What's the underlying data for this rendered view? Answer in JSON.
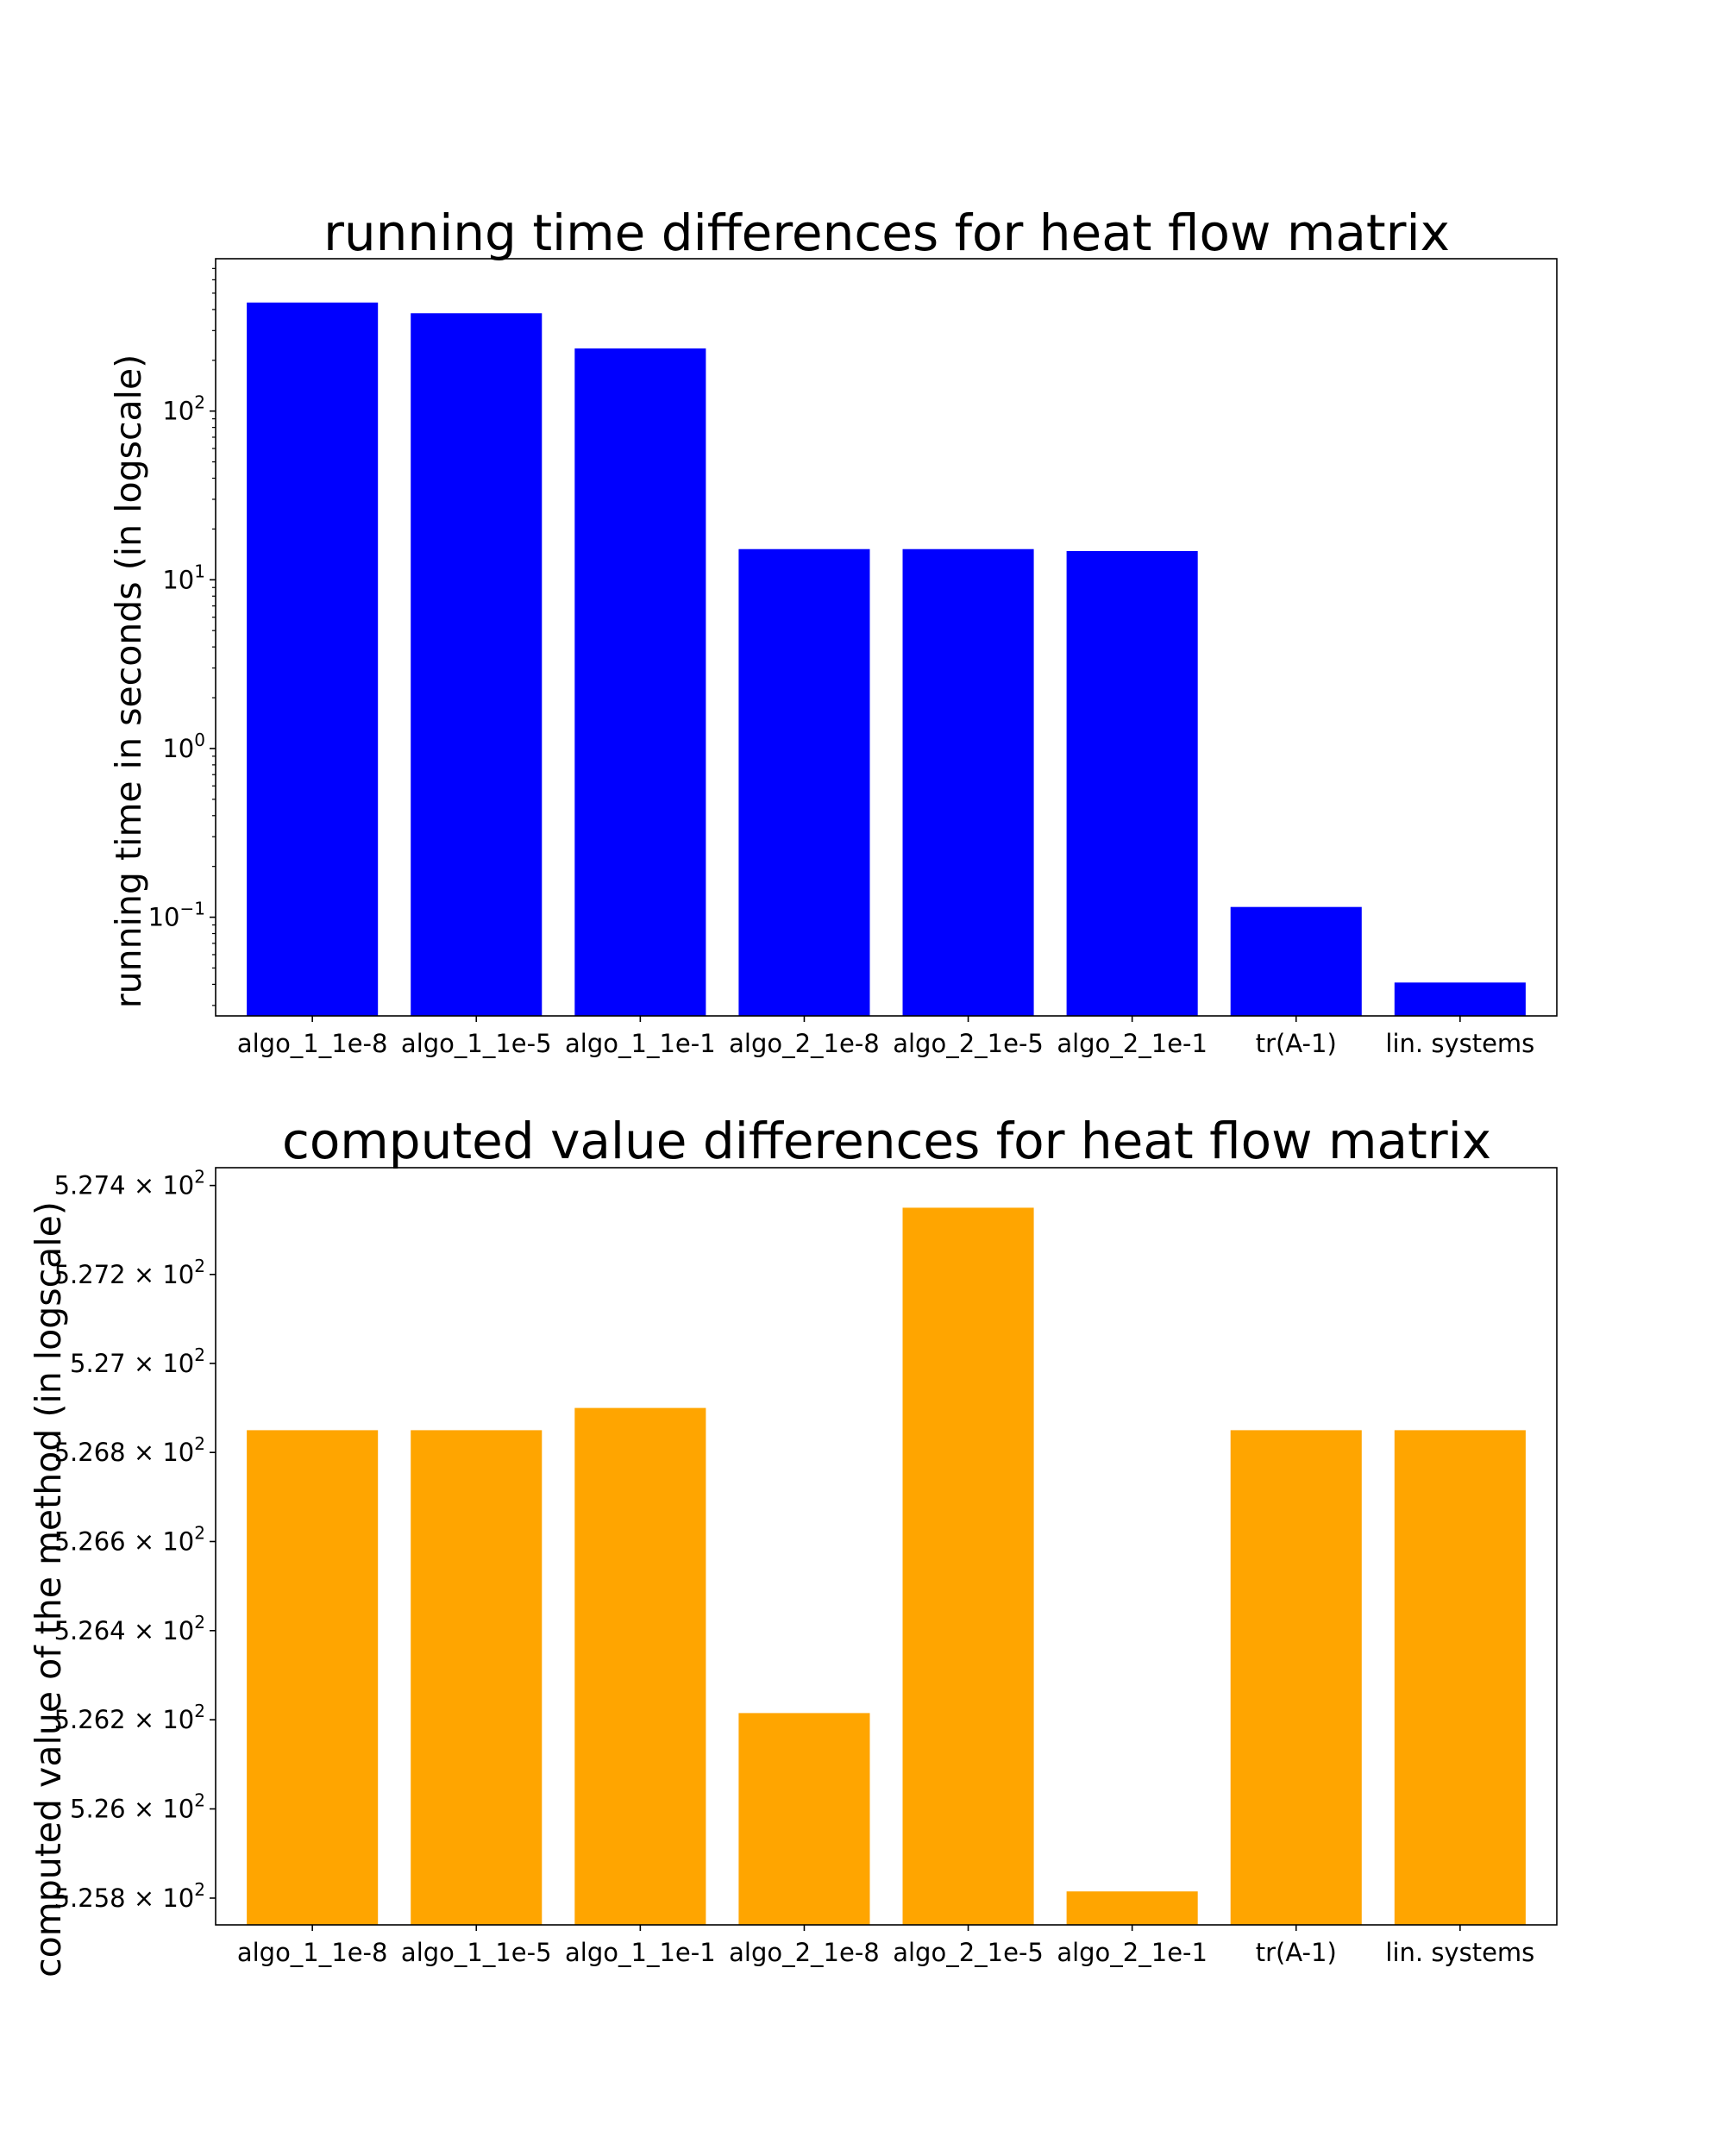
{
  "chart_data": [
    {
      "type": "bar",
      "title": "running time differences for heat flow matrix",
      "xlabel": "",
      "ylabel": "running time in seconds (in logscale)",
      "yscale": "log",
      "ylim": [
        0.026,
        800
      ],
      "color": "#0000ff",
      "grid": false,
      "categories": [
        "algo_1_1e-8",
        "algo_1_1e-5",
        "algo_1_1e-1",
        "algo_2_1e-8",
        "algo_2_1e-5",
        "algo_2_1e-1",
        "tr(A-1)",
        "lin. systems"
      ],
      "values": [
        440,
        380,
        235,
        15.2,
        15.2,
        14.8,
        0.115,
        0.041
      ],
      "yticks": [
        {
          "value": 0.1,
          "base": "10",
          "exp": "−1"
        },
        {
          "value": 1,
          "base": "10",
          "exp": "0"
        },
        {
          "value": 10,
          "base": "10",
          "exp": "1"
        },
        {
          "value": 100,
          "base": "10",
          "exp": "2"
        }
      ]
    },
    {
      "type": "bar",
      "title": "computed value differences for heat flow matrix",
      "xlabel": "",
      "ylabel": "computed value of the method (in logscale)",
      "yscale": "log",
      "ylim": [
        525.74,
        527.44
      ],
      "color": "#ffa500",
      "grid": false,
      "categories": [
        "algo_1_1e-8",
        "algo_1_1e-5",
        "algo_1_1e-1",
        "algo_2_1e-8",
        "algo_2_1e-5",
        "algo_2_1e-1",
        "tr(A-1)",
        "lin. systems"
      ],
      "values": [
        526.85,
        526.85,
        526.9,
        526.215,
        527.35,
        525.815,
        526.85,
        526.85
      ],
      "yticks": [
        {
          "value": 525.8,
          "mant": "5.258",
          "base": "10",
          "exp": "2"
        },
        {
          "value": 526.0,
          "mant": "5.26",
          "base": "10",
          "exp": "2"
        },
        {
          "value": 526.2,
          "mant": "5.262",
          "base": "10",
          "exp": "2"
        },
        {
          "value": 526.4,
          "mant": "5.264",
          "base": "10",
          "exp": "2"
        },
        {
          "value": 526.6,
          "mant": "5.266",
          "base": "10",
          "exp": "2"
        },
        {
          "value": 526.8,
          "mant": "5.268",
          "base": "10",
          "exp": "2"
        },
        {
          "value": 527.0,
          "mant": "5.27",
          "base": "10",
          "exp": "2"
        },
        {
          "value": 527.2,
          "mant": "5.272",
          "base": "10",
          "exp": "2"
        },
        {
          "value": 527.4,
          "mant": "5.274",
          "base": "10",
          "exp": "2"
        }
      ]
    }
  ]
}
